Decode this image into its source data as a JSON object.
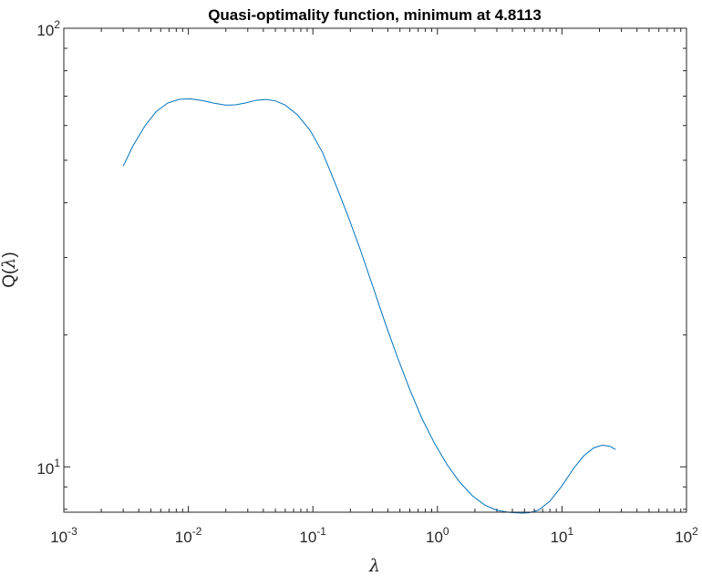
{
  "chart_data": {
    "type": "line",
    "title": "Quasi-optimality function, minimum at 4.8113",
    "xlabel": "λ",
    "ylabel_prefix": "Q(",
    "ylabel_var": "λ",
    "ylabel_suffix": ")",
    "xscale": "log",
    "yscale": "log",
    "xlim": [
      0.001,
      100
    ],
    "ylim": [
      7.88,
      100
    ],
    "grid": false,
    "series_color": "#0072BD",
    "x_ticks": [
      {
        "base": "10",
        "exp": "-3",
        "value": 0.001
      },
      {
        "base": "10",
        "exp": "-2",
        "value": 0.01
      },
      {
        "base": "10",
        "exp": "-1",
        "value": 0.1
      },
      {
        "base": "10",
        "exp": "0",
        "value": 1
      },
      {
        "base": "10",
        "exp": "1",
        "value": 10
      },
      {
        "base": "10",
        "exp": "2",
        "value": 100
      }
    ],
    "y_ticks": [
      {
        "base": "10",
        "exp": "1",
        "value": 10
      },
      {
        "base": "10",
        "exp": "2",
        "value": 100
      }
    ],
    "series": [
      {
        "x": [
          0.003,
          0.0036,
          0.0045,
          0.0055,
          0.0068,
          0.0085,
          0.0105,
          0.013,
          0.016,
          0.02,
          0.024,
          0.029,
          0.035,
          0.042,
          0.05,
          0.06,
          0.075,
          0.095,
          0.12,
          0.15,
          0.19,
          0.24,
          0.3,
          0.38,
          0.48,
          0.6,
          0.75,
          0.95,
          1.2,
          1.5,
          1.9,
          2.4,
          3.0,
          3.8,
          4.81,
          5.5,
          6.5,
          8.0,
          10.0,
          12.5,
          15.0,
          18.0,
          21.0,
          24.0,
          27.0
        ],
        "y": [
          48.5,
          54.0,
          60.0,
          64.5,
          67.5,
          68.9,
          69.0,
          68.4,
          67.5,
          66.8,
          66.9,
          67.6,
          68.5,
          68.8,
          68.3,
          66.8,
          63.5,
          58.5,
          52.0,
          44.5,
          37.5,
          31.3,
          26.0,
          21.3,
          17.7,
          15.0,
          12.9,
          11.3,
          10.1,
          9.25,
          8.6,
          8.18,
          7.96,
          7.87,
          7.84,
          7.86,
          7.97,
          8.35,
          9.05,
          9.95,
          10.6,
          11.05,
          11.2,
          11.15,
          10.95
        ]
      }
    ]
  }
}
